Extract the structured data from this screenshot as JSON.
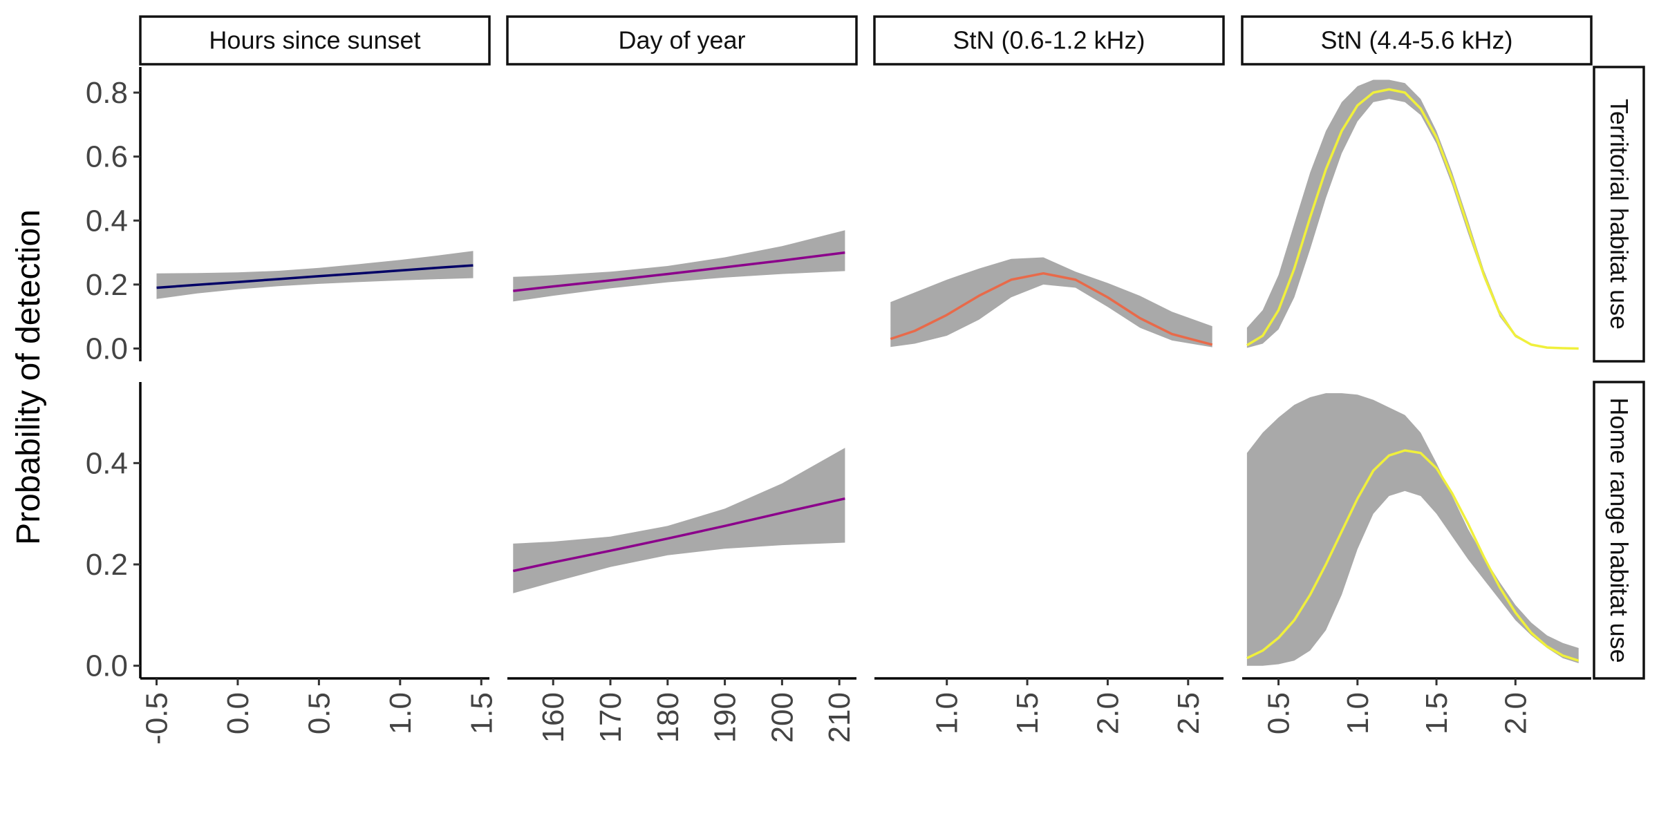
{
  "chart_data": {
    "type": "line",
    "layout": "facet grid: 4 covariate columns x 2 model rows, confidence ribbons with fitted lines",
    "ylabel": "Probability of detection",
    "xlabel": "",
    "grid": false,
    "legend": "none",
    "ribbon_color": "#A9A9A9",
    "columns": [
      {
        "key": "hours",
        "label": "Hours since sunset",
        "xlim": [
          -0.6,
          1.55
        ],
        "ticks": [
          -0.5,
          0.0,
          0.5,
          1.0,
          1.5
        ],
        "tick_labels": [
          "-0.5",
          "0.0",
          "0.5",
          "1.0",
          "1.5"
        ],
        "color": "#000066"
      },
      {
        "key": "doy",
        "label": "Day of year",
        "xlim": [
          152,
          213
        ],
        "ticks": [
          160,
          170,
          180,
          190,
          200,
          210
        ],
        "tick_labels": [
          "160",
          "170",
          "180",
          "190",
          "200",
          "210"
        ],
        "color": "#8B008B"
      },
      {
        "key": "stn_low",
        "label": "StN (0.6-1.2 kHz)",
        "xlim": [
          0.55,
          2.72
        ],
        "ticks": [
          1.0,
          1.5,
          2.0,
          2.5
        ],
        "tick_labels": [
          "1.0",
          "1.5",
          "2.0",
          "2.5"
        ],
        "color": "#E86A4A"
      },
      {
        "key": "stn_high",
        "label": "StN (4.4-5.6 kHz)",
        "xlim": [
          0.27,
          2.48
        ],
        "ticks": [
          0.5,
          1.0,
          1.5,
          2.0
        ],
        "tick_labels": [
          "0.5",
          "1.0",
          "1.5",
          "2.0"
        ],
        "color": "#F0F03C"
      }
    ],
    "rows": [
      {
        "key": "territorial",
        "label": "Territorial habitat use",
        "ylim": [
          -0.04,
          0.88
        ],
        "ticks": [
          0.0,
          0.2,
          0.4,
          0.6,
          0.8
        ],
        "tick_labels": [
          "0.0",
          "0.2",
          "0.4",
          "0.6",
          "0.8"
        ]
      },
      {
        "key": "home_range",
        "label": "Home range habitat use",
        "ylim": [
          -0.025,
          0.56
        ],
        "ticks": [
          0.0,
          0.2,
          0.4
        ],
        "tick_labels": [
          "0.0",
          "0.2",
          "0.4"
        ]
      }
    ],
    "series": [
      {
        "row": "territorial",
        "col": "hours",
        "x": [
          -0.5,
          -0.25,
          0.0,
          0.25,
          0.5,
          0.75,
          1.0,
          1.25,
          1.45
        ],
        "y": [
          0.19,
          0.199,
          0.208,
          0.217,
          0.226,
          0.235,
          0.244,
          0.253,
          0.26
        ],
        "lower": [
          0.155,
          0.172,
          0.185,
          0.195,
          0.202,
          0.208,
          0.213,
          0.217,
          0.22
        ],
        "upper": [
          0.235,
          0.236,
          0.238,
          0.243,
          0.252,
          0.264,
          0.277,
          0.292,
          0.305
        ]
      },
      {
        "row": "territorial",
        "col": "doy",
        "x": [
          153,
          160,
          170,
          180,
          190,
          200,
          211
        ],
        "y": [
          0.18,
          0.194,
          0.213,
          0.233,
          0.254,
          0.275,
          0.3
        ],
        "lower": [
          0.147,
          0.165,
          0.188,
          0.207,
          0.222,
          0.233,
          0.242
        ],
        "upper": [
          0.224,
          0.229,
          0.24,
          0.258,
          0.285,
          0.32,
          0.37
        ]
      },
      {
        "row": "territorial",
        "col": "stn_low",
        "x": [
          0.65,
          0.8,
          1.0,
          1.2,
          1.4,
          1.6,
          1.8,
          2.0,
          2.2,
          2.4,
          2.65
        ],
        "y": [
          0.03,
          0.055,
          0.105,
          0.165,
          0.215,
          0.235,
          0.215,
          0.16,
          0.095,
          0.045,
          0.012
        ],
        "lower": [
          0.005,
          0.015,
          0.04,
          0.09,
          0.16,
          0.2,
          0.19,
          0.13,
          0.065,
          0.025,
          0.004
        ],
        "upper": [
          0.145,
          0.175,
          0.215,
          0.25,
          0.28,
          0.285,
          0.24,
          0.205,
          0.165,
          0.115,
          0.07
        ]
      },
      {
        "row": "territorial",
        "col": "stn_high",
        "x": [
          0.3,
          0.4,
          0.5,
          0.6,
          0.7,
          0.8,
          0.9,
          1.0,
          1.1,
          1.2,
          1.3,
          1.4,
          1.5,
          1.6,
          1.7,
          1.8,
          1.9,
          2.0,
          2.1,
          2.2,
          2.3,
          2.4
        ],
        "y": [
          0.01,
          0.04,
          0.12,
          0.25,
          0.41,
          0.56,
          0.68,
          0.76,
          0.8,
          0.81,
          0.8,
          0.75,
          0.66,
          0.53,
          0.38,
          0.23,
          0.11,
          0.04,
          0.012,
          0.003,
          0.001,
          0.0
        ],
        "lower": [
          0.002,
          0.015,
          0.06,
          0.16,
          0.31,
          0.47,
          0.61,
          0.71,
          0.77,
          0.78,
          0.77,
          0.73,
          0.64,
          0.51,
          0.36,
          0.22,
          0.1,
          0.035,
          0.01,
          0.002,
          0.0,
          0.0
        ],
        "upper": [
          0.065,
          0.12,
          0.23,
          0.39,
          0.55,
          0.68,
          0.77,
          0.82,
          0.84,
          0.84,
          0.83,
          0.78,
          0.68,
          0.55,
          0.4,
          0.245,
          0.12,
          0.045,
          0.014,
          0.004,
          0.001,
          0.0
        ]
      },
      {
        "row": "home_range",
        "col": "doy",
        "x": [
          153,
          160,
          170,
          180,
          190,
          200,
          211
        ],
        "y": [
          0.187,
          0.204,
          0.227,
          0.251,
          0.276,
          0.302,
          0.33
        ],
        "lower": [
          0.143,
          0.165,
          0.195,
          0.218,
          0.231,
          0.238,
          0.243
        ],
        "upper": [
          0.241,
          0.245,
          0.255,
          0.276,
          0.31,
          0.36,
          0.43
        ]
      },
      {
        "row": "home_range",
        "col": "stn_high",
        "x": [
          0.3,
          0.4,
          0.5,
          0.6,
          0.7,
          0.8,
          0.9,
          1.0,
          1.1,
          1.2,
          1.3,
          1.4,
          1.5,
          1.6,
          1.7,
          1.8,
          1.9,
          2.0,
          2.1,
          2.2,
          2.3,
          2.4
        ],
        "y": [
          0.015,
          0.03,
          0.055,
          0.09,
          0.14,
          0.2,
          0.265,
          0.33,
          0.385,
          0.415,
          0.425,
          0.42,
          0.39,
          0.34,
          0.28,
          0.215,
          0.155,
          0.105,
          0.065,
          0.038,
          0.02,
          0.01
        ],
        "lower": [
          0.0,
          0.0,
          0.003,
          0.01,
          0.03,
          0.07,
          0.14,
          0.23,
          0.3,
          0.335,
          0.345,
          0.335,
          0.3,
          0.255,
          0.21,
          0.17,
          0.13,
          0.09,
          0.06,
          0.035,
          0.015,
          0.005
        ],
        "upper": [
          0.42,
          0.46,
          0.49,
          0.515,
          0.53,
          0.538,
          0.538,
          0.535,
          0.525,
          0.51,
          0.495,
          0.46,
          0.4,
          0.335,
          0.27,
          0.215,
          0.165,
          0.12,
          0.085,
          0.06,
          0.045,
          0.035
        ]
      }
    ]
  }
}
